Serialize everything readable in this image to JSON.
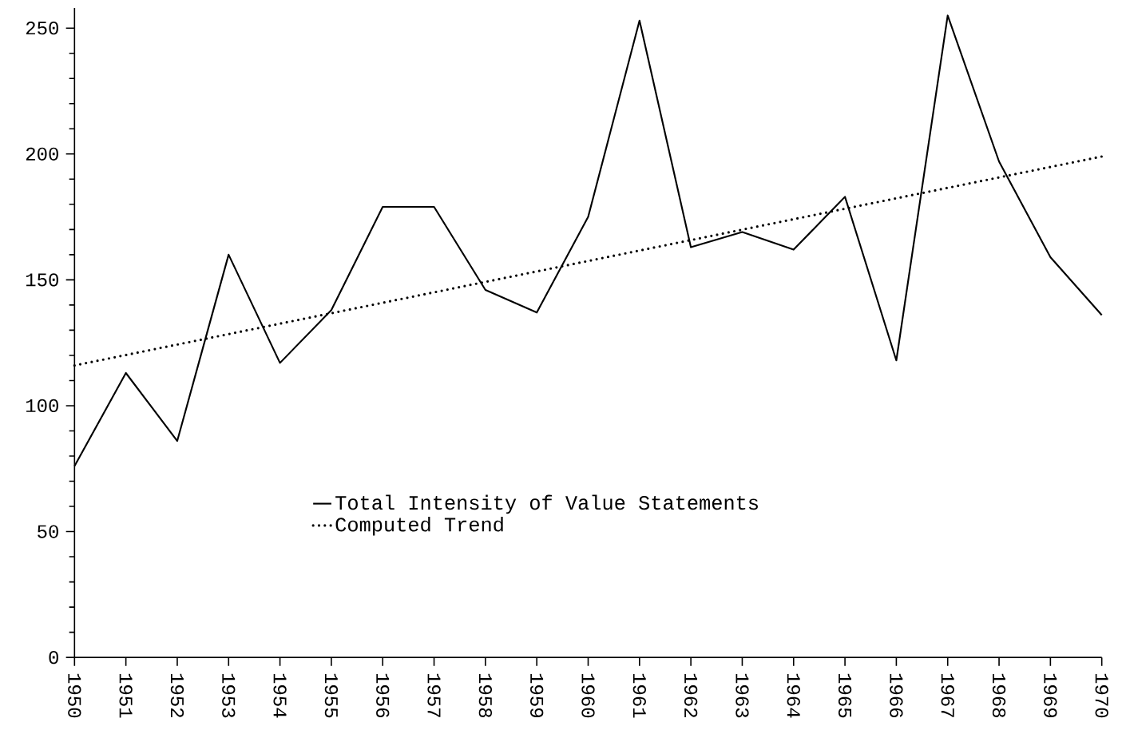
{
  "chart_data": {
    "type": "line",
    "x": [
      1950,
      1951,
      1952,
      1953,
      1954,
      1955,
      1956,
      1957,
      1958,
      1959,
      1960,
      1961,
      1962,
      1963,
      1964,
      1965,
      1966,
      1967,
      1968,
      1969,
      1970
    ],
    "xlim": [
      1950,
      1970
    ],
    "xticks": [
      1950,
      1951,
      1952,
      1953,
      1954,
      1955,
      1956,
      1957,
      1958,
      1959,
      1960,
      1961,
      1962,
      1963,
      1964,
      1965,
      1966,
      1967,
      1968,
      1969,
      1970
    ],
    "ylim": [
      0,
      258
    ],
    "yticks": [
      0,
      50,
      100,
      150,
      200,
      250
    ],
    "marker": "none",
    "legend": "bottom",
    "series": [
      {
        "name": "Total Intensity of Value Statements",
        "color": "#000000",
        "line_style": "solid",
        "values": [
          76,
          113,
          86,
          160,
          117,
          138,
          179,
          179,
          146,
          137,
          175,
          253,
          163,
          169,
          162,
          183,
          118,
          255,
          197,
          159,
          136
        ]
      },
      {
        "name": "Computed Trend",
        "type": "line",
        "color": "#000000",
        "line_style": "dotted",
        "x": [
          1950,
          1970
        ],
        "values": [
          116,
          199
        ]
      }
    ]
  }
}
